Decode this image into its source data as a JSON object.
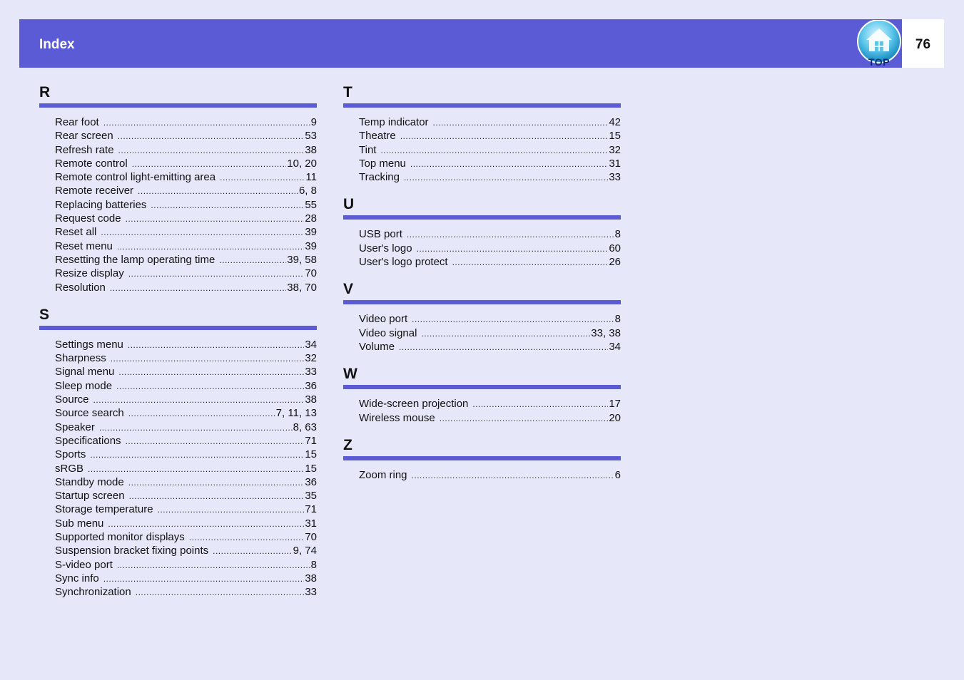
{
  "header": {
    "title": "Index",
    "page_number": "76",
    "top_button_label": "TOP",
    "colors": {
      "bar": "#5b5bd6",
      "background": "#e6e8fa"
    }
  },
  "columns": [
    {
      "sections": [
        {
          "letter": "R",
          "entries": [
            {
              "term": "Rear foot",
              "pages": "9"
            },
            {
              "term": "Rear screen",
              "pages": "53"
            },
            {
              "term": "Refresh rate",
              "pages": "38"
            },
            {
              "term": "Remote control",
              "pages": "10, 20"
            },
            {
              "term": "Remote control light-emitting area",
              "pages": "11"
            },
            {
              "term": "Remote receiver",
              "pages": "6, 8"
            },
            {
              "term": "Replacing batteries",
              "pages": "55"
            },
            {
              "term": "Request code",
              "pages": "28"
            },
            {
              "term": "Reset all",
              "pages": "39"
            },
            {
              "term": "Reset menu",
              "pages": "39"
            },
            {
              "term": "Resetting the lamp operating time",
              "pages": "39, 58"
            },
            {
              "term": "Resize display",
              "pages": "70"
            },
            {
              "term": "Resolution",
              "pages": "38, 70"
            }
          ]
        },
        {
          "letter": "S",
          "entries": [
            {
              "term": "Settings menu",
              "pages": "34"
            },
            {
              "term": "Sharpness",
              "pages": "32"
            },
            {
              "term": "Signal menu",
              "pages": "33"
            },
            {
              "term": "Sleep mode",
              "pages": "36"
            },
            {
              "term": "Source",
              "pages": "38"
            },
            {
              "term": "Source search",
              "pages": "7, 11, 13"
            },
            {
              "term": "Speaker",
              "pages": "8, 63"
            },
            {
              "term": "Specifications",
              "pages": "71"
            },
            {
              "term": "Sports",
              "pages": "15"
            },
            {
              "term": "sRGB",
              "pages": "15"
            },
            {
              "term": "Standby mode",
              "pages": "36"
            },
            {
              "term": "Startup screen",
              "pages": "35"
            },
            {
              "term": "Storage temperature",
              "pages": "71"
            },
            {
              "term": "Sub menu",
              "pages": "31"
            },
            {
              "term": "Supported monitor displays",
              "pages": "70"
            },
            {
              "term": "Suspension bracket fixing points",
              "pages": "9, 74"
            },
            {
              "term": "S-video port",
              "pages": "8"
            },
            {
              "term": "Sync info",
              "pages": "38"
            },
            {
              "term": "Synchronization",
              "pages": "33"
            }
          ]
        }
      ]
    },
    {
      "sections": [
        {
          "letter": "T",
          "entries": [
            {
              "term": "Temp indicator",
              "pages": "42"
            },
            {
              "term": "Theatre",
              "pages": "15"
            },
            {
              "term": "Tint",
              "pages": "32"
            },
            {
              "term": "Top menu",
              "pages": "31"
            },
            {
              "term": "Tracking",
              "pages": "33"
            }
          ]
        },
        {
          "letter": "U",
          "entries": [
            {
              "term": "USB port",
              "pages": "8"
            },
            {
              "term": "User's logo",
              "pages": "60"
            },
            {
              "term": "User's logo protect",
              "pages": "26"
            }
          ]
        },
        {
          "letter": "V",
          "entries": [
            {
              "term": "Video port",
              "pages": "8"
            },
            {
              "term": "Video signal",
              "pages": "33, 38"
            },
            {
              "term": "Volume",
              "pages": "34"
            }
          ]
        },
        {
          "letter": "W",
          "entries": [
            {
              "term": "Wide-screen projection",
              "pages": "17"
            },
            {
              "term": "Wireless mouse",
              "pages": "20"
            }
          ]
        },
        {
          "letter": "Z",
          "entries": [
            {
              "term": "Zoom ring",
              "pages": "6"
            }
          ]
        }
      ]
    }
  ]
}
